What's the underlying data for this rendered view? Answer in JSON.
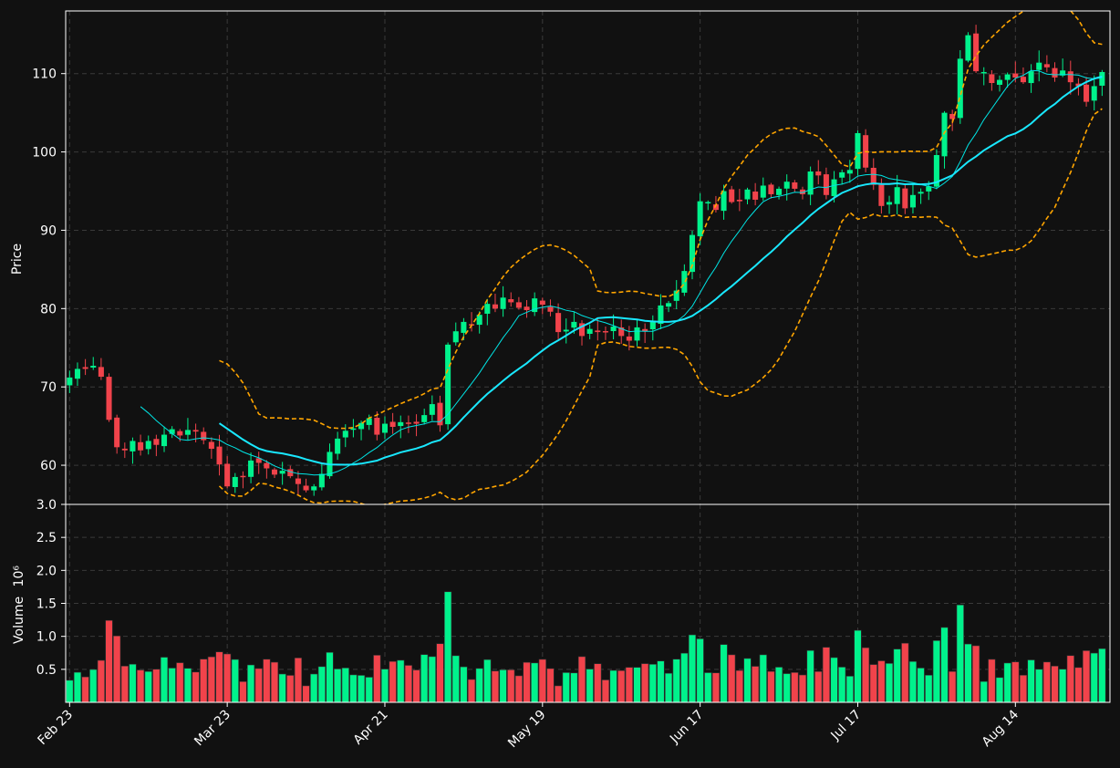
{
  "chart_data": {
    "type": "candlestick",
    "price_panel": {
      "ylabel": "Price",
      "ylim": [
        55,
        118
      ],
      "yticks": [
        60,
        70,
        80,
        90,
        100,
        110
      ],
      "grid": true
    },
    "volume_panel": {
      "ylabel": "Volume",
      "ylabel_exponent": "10⁶",
      "ylim": [
        0,
        3.0
      ],
      "yticks": [
        0.5,
        1.0,
        1.5,
        2.0,
        2.5,
        3.0
      ],
      "ytick_labels": [
        "0.5",
        "1.0",
        "1.5",
        "2.0",
        "2.5",
        "3.0"
      ],
      "grid": true
    },
    "xticks": [
      {
        "index": 0,
        "label": "Feb 23"
      },
      {
        "index": 20,
        "label": "Mar 23"
      },
      {
        "index": 40,
        "label": "Apr 21"
      },
      {
        "index": 60,
        "label": "May 19"
      },
      {
        "index": 80,
        "label": "Jun 17"
      },
      {
        "index": 100,
        "label": "Jul 17"
      },
      {
        "index": 120,
        "label": "Aug 14"
      }
    ],
    "colors": {
      "up": "#00f28c",
      "down": "#f1434b",
      "fast_ma": "#00e5e5",
      "slow_ma": "#19e8ff",
      "bollinger": "#ffa500",
      "background": "#111111"
    },
    "series": [
      {
        "name": "close",
        "values": [
          71.2,
          72.3,
          72.3,
          72.7,
          71.3,
          65.8,
          62.3,
          61.9,
          63.1,
          61.9,
          63.1,
          62.6,
          63.9,
          64.6,
          63.8,
          64.5,
          64.3,
          63.2,
          62.1,
          60.1,
          57.3,
          58.5,
          58.6,
          60.6,
          60.3,
          59.6,
          58.8,
          59.3,
          58.6,
          57.6,
          56.8,
          57.3,
          58.9,
          61.7,
          63.4,
          64.4,
          64.7,
          65.4,
          66.0,
          63.9,
          65.3,
          64.9,
          65.5,
          65.3,
          65.3,
          66.4,
          67.8,
          65.1,
          75.4,
          77.1,
          78.3,
          78.0,
          79.2,
          80.6,
          80.0,
          81.4,
          80.8,
          80.1,
          79.8,
          81.3,
          80.5,
          79.6,
          77.0,
          77.3,
          78.3,
          76.5,
          77.4,
          77.0,
          77.0,
          77.7,
          76.5,
          75.9,
          77.6,
          77.1,
          78.3,
          80.4,
          80.7,
          82.3,
          84.8,
          89.4,
          93.7,
          93.6,
          92.6,
          95.0,
          93.6,
          93.7,
          95.2,
          93.9,
          95.7,
          94.6,
          95.3,
          96.2,
          95.3,
          94.6,
          97.5,
          97.0,
          94.5,
          96.5,
          97.4,
          97.7,
          102.4,
          98.0,
          95.8,
          93.1,
          93.6,
          95.5,
          92.8,
          94.5,
          94.9,
          95.6,
          99.6,
          105.0,
          104.2,
          111.9,
          114.9,
          110.3,
          110.2,
          108.8,
          109.2,
          109.9,
          109.5,
          108.9,
          110.3,
          111.4,
          110.8,
          109.5,
          110.4,
          108.9,
          108.4,
          106.4,
          108.4,
          110.2
        ]
      }
    ],
    "ohlc_sample_note": ""
  }
}
